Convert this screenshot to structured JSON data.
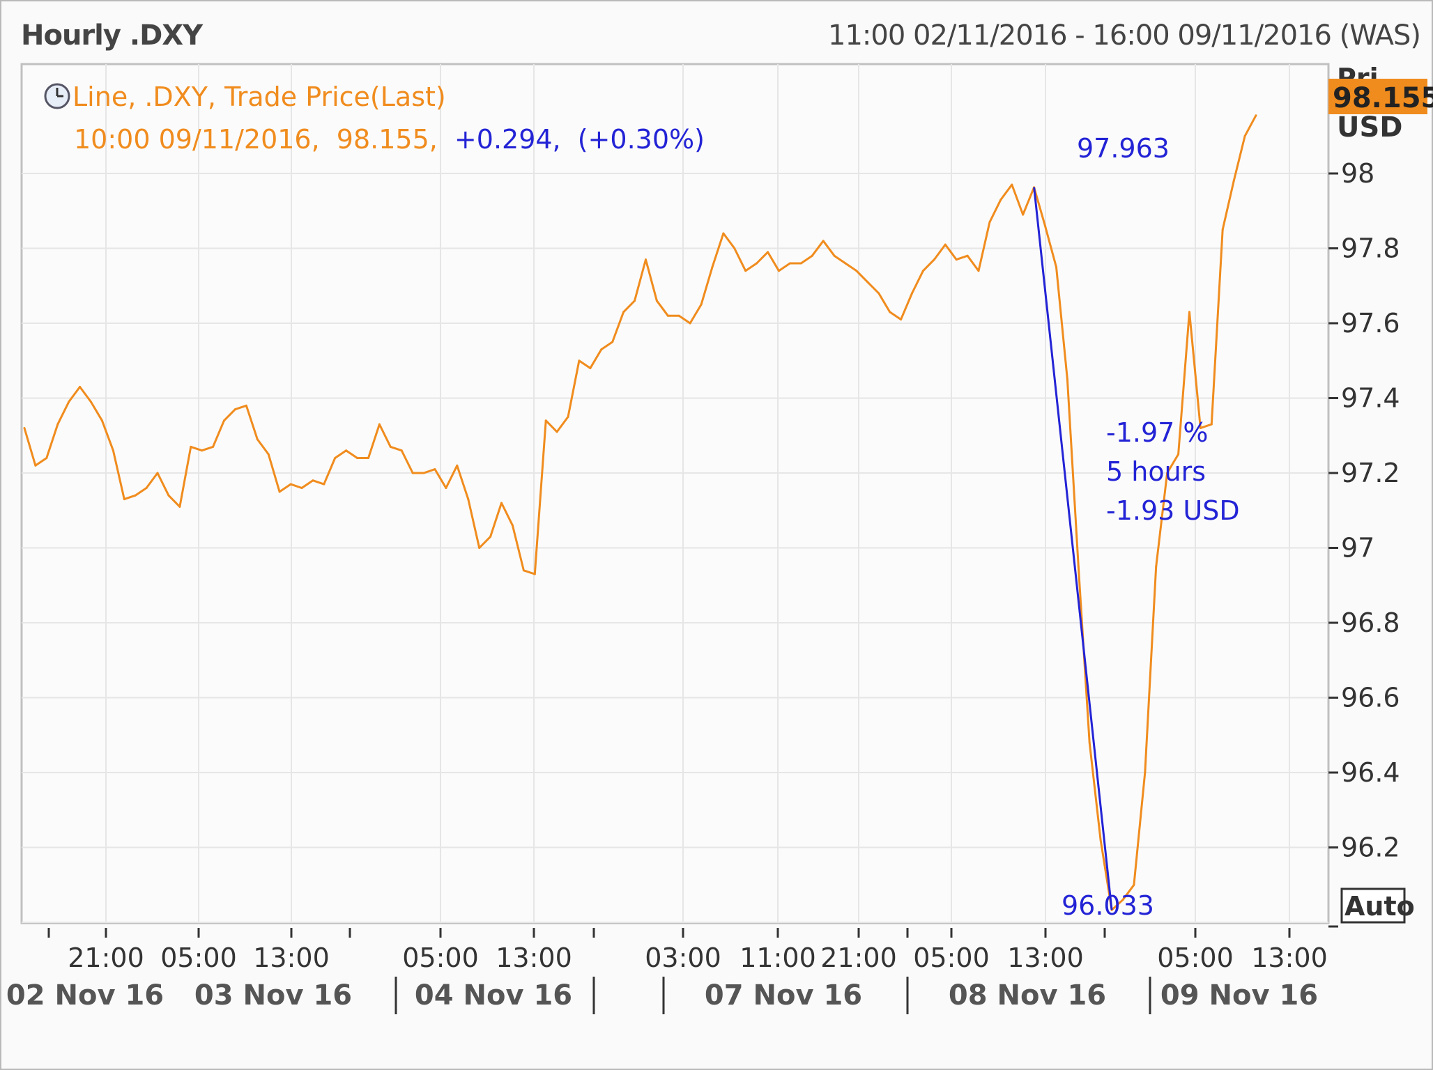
{
  "header": {
    "title": "Hourly .DXY",
    "date_range": "11:00 02/11/2016 - 16:00 09/11/2016 (WAS)"
  },
  "legend": {
    "line1": "Line, .DXY, Trade Price(Last)",
    "line2_date": "10:00 09/11/2016,",
    "line2_price": "98.155,",
    "line2_change": "+0.294,",
    "line2_pct": "(+0.30%)"
  },
  "price_axis": {
    "header_partial": "Pri",
    "current_price": "98.155",
    "currency": "USD",
    "auto_button": "Auto"
  },
  "annotations": {
    "high_label": "97.963",
    "low_label": "96.033",
    "pct_change": "-1.97 %",
    "duration": "5 hours",
    "abs_change": "-1.93 USD"
  },
  "colors": {
    "series": "#f08c1e",
    "annotation": "#2323d6",
    "price_badge": "#f08c1e",
    "grid": "#e6e6e6"
  },
  "chart_data": {
    "type": "line",
    "title": "Hourly .DXY",
    "series": [
      {
        "name": ".DXY",
        "values": [
          97.32,
          97.22,
          97.24,
          97.33,
          97.39,
          97.43,
          97.39,
          97.34,
          97.26,
          97.13,
          97.14,
          97.16,
          97.2,
          97.14,
          97.11,
          97.27,
          97.26,
          97.27,
          97.34,
          97.37,
          97.38,
          97.29,
          97.25,
          97.15,
          97.17,
          97.16,
          97.18,
          97.17,
          97.24,
          97.26,
          97.24,
          97.24,
          97.33,
          97.27,
          97.26,
          97.2,
          97.2,
          97.21,
          97.16,
          97.22,
          97.13,
          97.0,
          97.03,
          97.12,
          97.06,
          96.94,
          96.93,
          97.34,
          97.31,
          97.35,
          97.5,
          97.48,
          97.53,
          97.55,
          97.63,
          97.66,
          97.77,
          97.66,
          97.62,
          97.62,
          97.6,
          97.65,
          97.75,
          97.84,
          97.8,
          97.74,
          97.76,
          97.79,
          97.74,
          97.76,
          97.76,
          97.78,
          97.82,
          97.78,
          97.76,
          97.74,
          97.71,
          97.68,
          97.63,
          97.61,
          97.68,
          97.74,
          97.77,
          97.81,
          97.77,
          97.78,
          97.74,
          97.87,
          97.93,
          97.97,
          97.89,
          97.963,
          97.86,
          97.75,
          97.45,
          96.95,
          96.48,
          96.22,
          96.033,
          96.06,
          96.1,
          96.4,
          96.95,
          97.2,
          97.25,
          97.63,
          97.32,
          97.33,
          97.85,
          97.98,
          98.1,
          98.155
        ]
      }
    ],
    "x_tick_labels": [
      "21:00",
      "05:00",
      "13:00",
      "05:00",
      "13:00",
      "03:00",
      "11:00",
      "21:00",
      "05:00",
      "13:00",
      "05:00",
      "13:00"
    ],
    "day_labels": [
      "02 Nov 16",
      "03 Nov 16",
      "04 Nov 16",
      "07 Nov 16",
      "08 Nov 16",
      "09 Nov 16"
    ],
    "y_ticks": [
      "98",
      "97.8",
      "97.6",
      "97.4",
      "97.2",
      "97",
      "96.8",
      "96.6",
      "96.4",
      "96.2"
    ],
    "ylim": [
      96.0,
      98.3
    ],
    "grid": true,
    "legend_position": "top-left",
    "annotations": {
      "peak": 97.963,
      "trough": 96.033,
      "change_pct": -1.97,
      "change_abs": -1.93,
      "duration_hours": 5
    }
  }
}
